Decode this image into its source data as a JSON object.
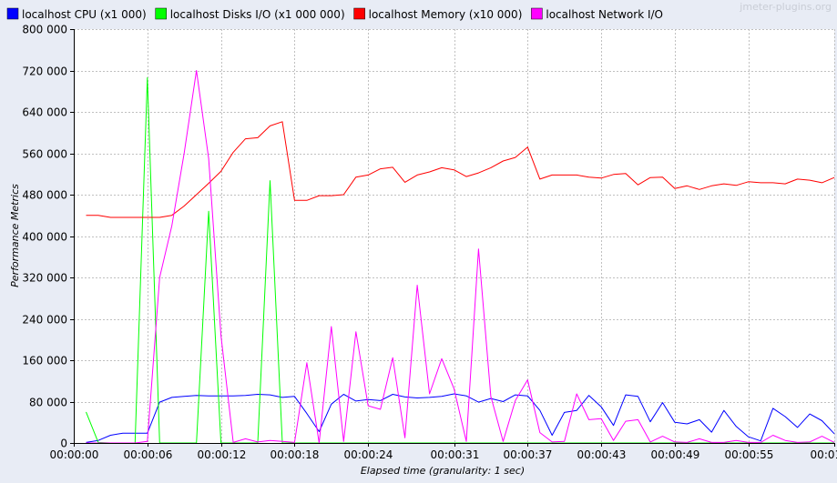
{
  "chart_data": {
    "type": "line",
    "watermark": "jmeter-plugins.org",
    "xlabel": "Elapsed time (granularity: 1 sec)",
    "ylabel": "Performance Metrics",
    "ylim": [
      0,
      800000
    ],
    "xlim": [
      0,
      62
    ],
    "grid": true,
    "legend_position": "top",
    "y_ticks": [
      0,
      80000,
      160000,
      240000,
      320000,
      400000,
      480000,
      560000,
      640000,
      720000,
      800000
    ],
    "y_tick_labels": [
      "0",
      "80 000",
      "160 000",
      "240 000",
      "320 000",
      "400 000",
      "480 000",
      "560 000",
      "640 000",
      "720 000",
      "800 000"
    ],
    "x_ticks": [
      0,
      6,
      12,
      18,
      24,
      31,
      37,
      43,
      49,
      55,
      62
    ],
    "x_tick_labels": [
      "00:00:00",
      "00:00:06",
      "00:00:12",
      "00:00:18",
      "00:00:24",
      "00:00:31",
      "00:00:37",
      "00:00:43",
      "00:00:49",
      "00:00:55",
      "00:01:02"
    ],
    "x": [
      1,
      2,
      3,
      4,
      5,
      6,
      7,
      8,
      9,
      10,
      11,
      12,
      13,
      14,
      15,
      16,
      17,
      18,
      19,
      20,
      21,
      22,
      23,
      24,
      25,
      26,
      27,
      28,
      29,
      30,
      31,
      32,
      33,
      34,
      35,
      36,
      37,
      38,
      39,
      40,
      41,
      42,
      43,
      44,
      45,
      46,
      47,
      48,
      49,
      50,
      51,
      52,
      53,
      54,
      55,
      56,
      57,
      58,
      59,
      60,
      61,
      62
    ],
    "series": [
      {
        "name": "localhost CPU (x1 000)",
        "color": "#0000ff",
        "values": [
          1000,
          5000,
          15000,
          19000,
          19000,
          19000,
          79000,
          88000,
          90000,
          92000,
          91000,
          91000,
          91000,
          92000,
          94000,
          93000,
          88000,
          90000,
          57000,
          22000,
          75000,
          94000,
          81000,
          84000,
          82000,
          94000,
          89000,
          87000,
          88000,
          90000,
          95000,
          91000,
          79000,
          86000,
          80000,
          93000,
          91000,
          63000,
          15000,
          59000,
          63000,
          92000,
          70000,
          34000,
          93000,
          90000,
          41000,
          78000,
          40000,
          37000,
          45000,
          21000,
          63000,
          32000,
          12000,
          4000,
          67000,
          51000,
          30000,
          56000,
          43000,
          18000
        ]
      },
      {
        "name": "localhost Disks I/O (x1 000 000)",
        "color": "#00ff00",
        "values": [
          60000,
          1000,
          0,
          0,
          0,
          706000,
          0,
          0,
          0,
          0,
          448000,
          0,
          0,
          0,
          0,
          507000,
          0,
          0,
          0,
          0,
          0,
          0,
          0,
          0,
          0,
          0,
          0,
          0,
          0,
          0,
          0,
          0,
          0,
          0,
          0,
          0,
          0,
          0,
          0,
          0,
          0,
          0,
          0,
          0,
          0,
          0,
          0,
          0,
          0,
          0,
          0,
          0,
          0,
          0,
          0,
          0,
          0,
          0,
          0,
          0,
          0,
          0
        ]
      },
      {
        "name": "localhost Memory (x10 000)",
        "color": "#ff0000",
        "values": [
          440000,
          440000,
          436000,
          436000,
          436000,
          436000,
          436000,
          440000,
          458000,
          480000,
          502000,
          525000,
          562000,
          588000,
          590000,
          613000,
          621000,
          469000,
          469000,
          478000,
          478000,
          480000,
          514000,
          518000,
          530000,
          533000,
          504000,
          518000,
          524000,
          532000,
          528000,
          515000,
          522000,
          532000,
          545000,
          552000,
          572000,
          510000,
          518000,
          518000,
          518000,
          514000,
          512000,
          519000,
          521000,
          499000,
          513000,
          514000,
          492000,
          497000,
          490000,
          497000,
          501000,
          498000,
          505000,
          503000,
          503000,
          501000,
          510000,
          508000,
          503000,
          513000
        ]
      },
      {
        "name": "localhost Network I/O",
        "color": "#ff00ff",
        "values": [
          0,
          0,
          0,
          0,
          0,
          3000,
          320000,
          420000,
          560000,
          720000,
          550000,
          208000,
          1000,
          8000,
          2000,
          5000,
          3000,
          1000,
          155000,
          0,
          225000,
          3000,
          215000,
          72000,
          65000,
          165000,
          10000,
          305000,
          95000,
          163000,
          105000,
          3000,
          375000,
          90000,
          3000,
          82000,
          122000,
          20000,
          2000,
          3000,
          95000,
          45000,
          47000,
          5000,
          42000,
          45000,
          2000,
          13000,
          2000,
          1000,
          8000,
          1000,
          1000,
          5000,
          1000,
          1000,
          15000,
          5000,
          1000,
          2000,
          13000,
          1000
        ]
      }
    ]
  }
}
